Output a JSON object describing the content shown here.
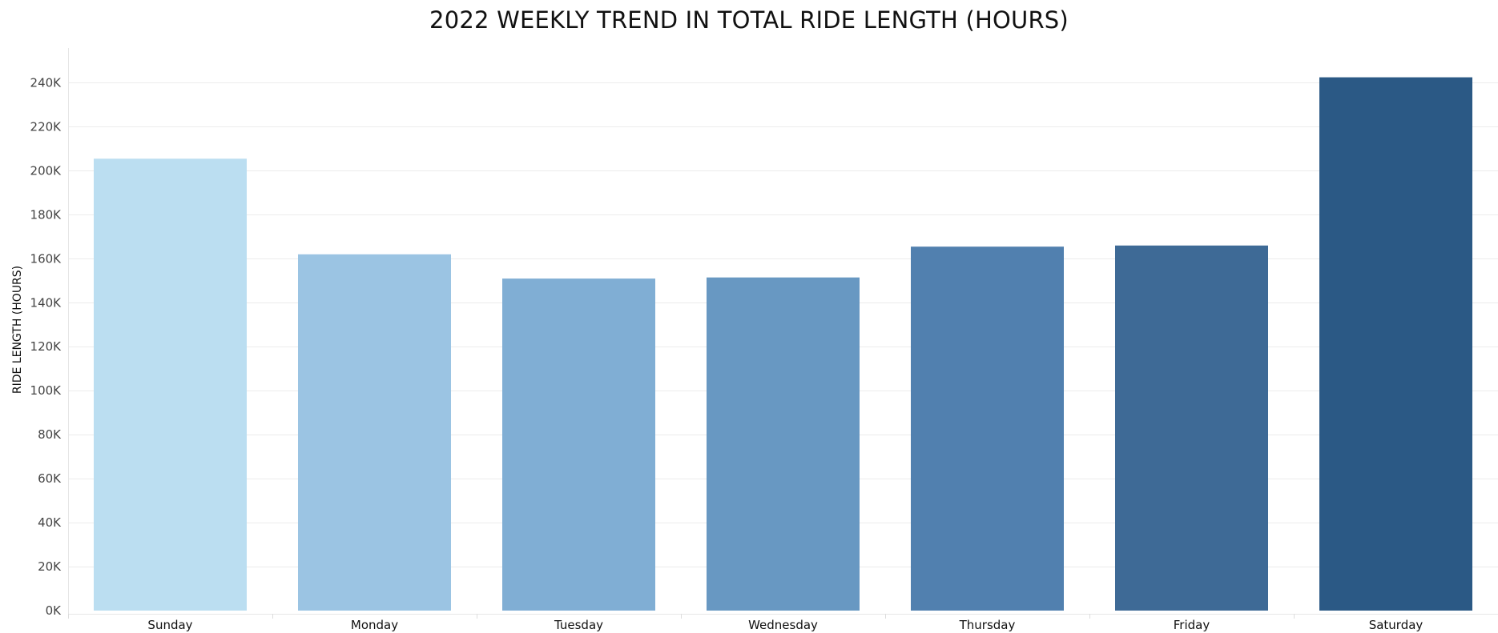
{
  "chart_data": {
    "type": "bar",
    "title": "2022 WEEKLY TREND IN TOTAL RIDE LENGTH (HOURS)",
    "xlabel": "",
    "ylabel": "RIDE LENGTH (HOURS)",
    "categories": [
      "Sunday",
      "Monday",
      "Tuesday",
      "Wednesday",
      "Thursday",
      "Friday",
      "Saturday"
    ],
    "values": [
      205500,
      162000,
      151000,
      151500,
      165500,
      166000,
      242500
    ],
    "colors": [
      "#bbdef1",
      "#9bc4e3",
      "#80aed4",
      "#6898c2",
      "#5180af",
      "#3e6a96",
      "#2b5985"
    ],
    "ylim": [
      0,
      250000
    ],
    "yticks": [
      0,
      20000,
      40000,
      60000,
      80000,
      100000,
      120000,
      140000,
      160000,
      180000,
      200000,
      220000,
      240000
    ],
    "ytick_labels": [
      "0K",
      "20K",
      "40K",
      "60K",
      "80K",
      "100K",
      "120K",
      "140K",
      "160K",
      "180K",
      "200K",
      "220K",
      "240K"
    ],
    "grid": true,
    "legend": "none"
  }
}
